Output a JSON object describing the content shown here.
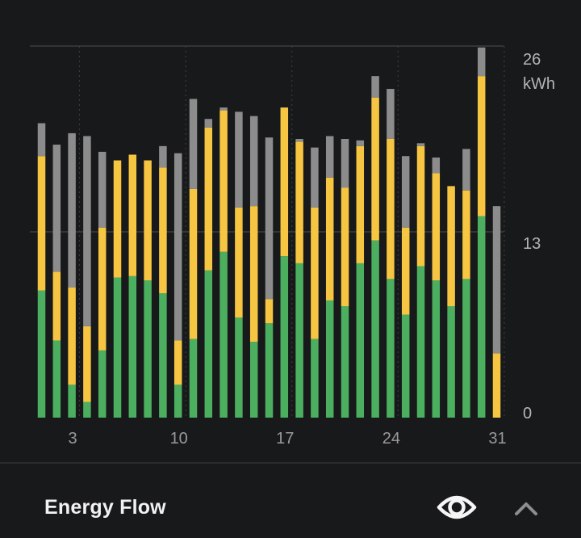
{
  "chart_data": {
    "type": "bar",
    "stacked": true,
    "x": [
      1,
      2,
      3,
      4,
      5,
      6,
      7,
      8,
      9,
      10,
      11,
      12,
      13,
      14,
      15,
      16,
      17,
      18,
      19,
      20,
      21,
      22,
      23,
      24,
      25,
      26,
      27,
      28,
      29,
      30,
      31
    ],
    "x_tick_labels": [
      "3",
      "10",
      "17",
      "24",
      "31"
    ],
    "x_ticks": [
      3,
      10,
      17,
      24,
      31
    ],
    "y_ticks": [
      0,
      13,
      26
    ],
    "y_tick_labels": [
      "0",
      "13",
      "26"
    ],
    "ylabel": "kWh",
    "ylim": [
      0,
      26
    ],
    "colors": {
      "green": "#4caf5f",
      "yellow": "#f6c642",
      "gray": "#8c8c8c"
    },
    "series": [
      {
        "color_key": "green",
        "values": [
          8.9,
          5.4,
          2.3,
          1.1,
          4.7,
          9.8,
          9.9,
          9.6,
          8.7,
          2.3,
          5.5,
          10.3,
          11.6,
          7.0,
          5.3,
          6.6,
          11.3,
          10.8,
          5.5,
          8.2,
          7.8,
          10.8,
          12.4,
          9.7,
          7.2,
          10.6,
          9.6,
          7.8,
          9.7,
          14.1,
          0
        ],
        "annotation": "bottom segment"
      },
      {
        "color_key": "yellow",
        "values": [
          9.4,
          4.8,
          6.8,
          5.3,
          8.6,
          8.2,
          8.5,
          8.4,
          8.8,
          3.1,
          10.5,
          10.0,
          9.9,
          7.7,
          9.5,
          1.7,
          10.4,
          8.5,
          9.2,
          8.6,
          8.3,
          8.2,
          10.0,
          9.8,
          6.1,
          8.4,
          7.5,
          8.4,
          6.2,
          9.8,
          4.5
        ]
      },
      {
        "color_key": "gray",
        "values": [
          2.3,
          8.9,
          10.8,
          13.3,
          5.3,
          0,
          0,
          0,
          1.5,
          13.1,
          6.3,
          0.6,
          0.2,
          6.7,
          6.3,
          11.3,
          0,
          0.2,
          4.2,
          2.9,
          3.4,
          0.4,
          1.5,
          3.5,
          5.0,
          0.2,
          1.1,
          0,
          2.9,
          2.0,
          10.3
        ]
      }
    ],
    "grid": true
  },
  "footer": {
    "title": "Energy Flow",
    "eye_icon": "eye-icon",
    "chevron_icon": "chevron-up-icon"
  }
}
